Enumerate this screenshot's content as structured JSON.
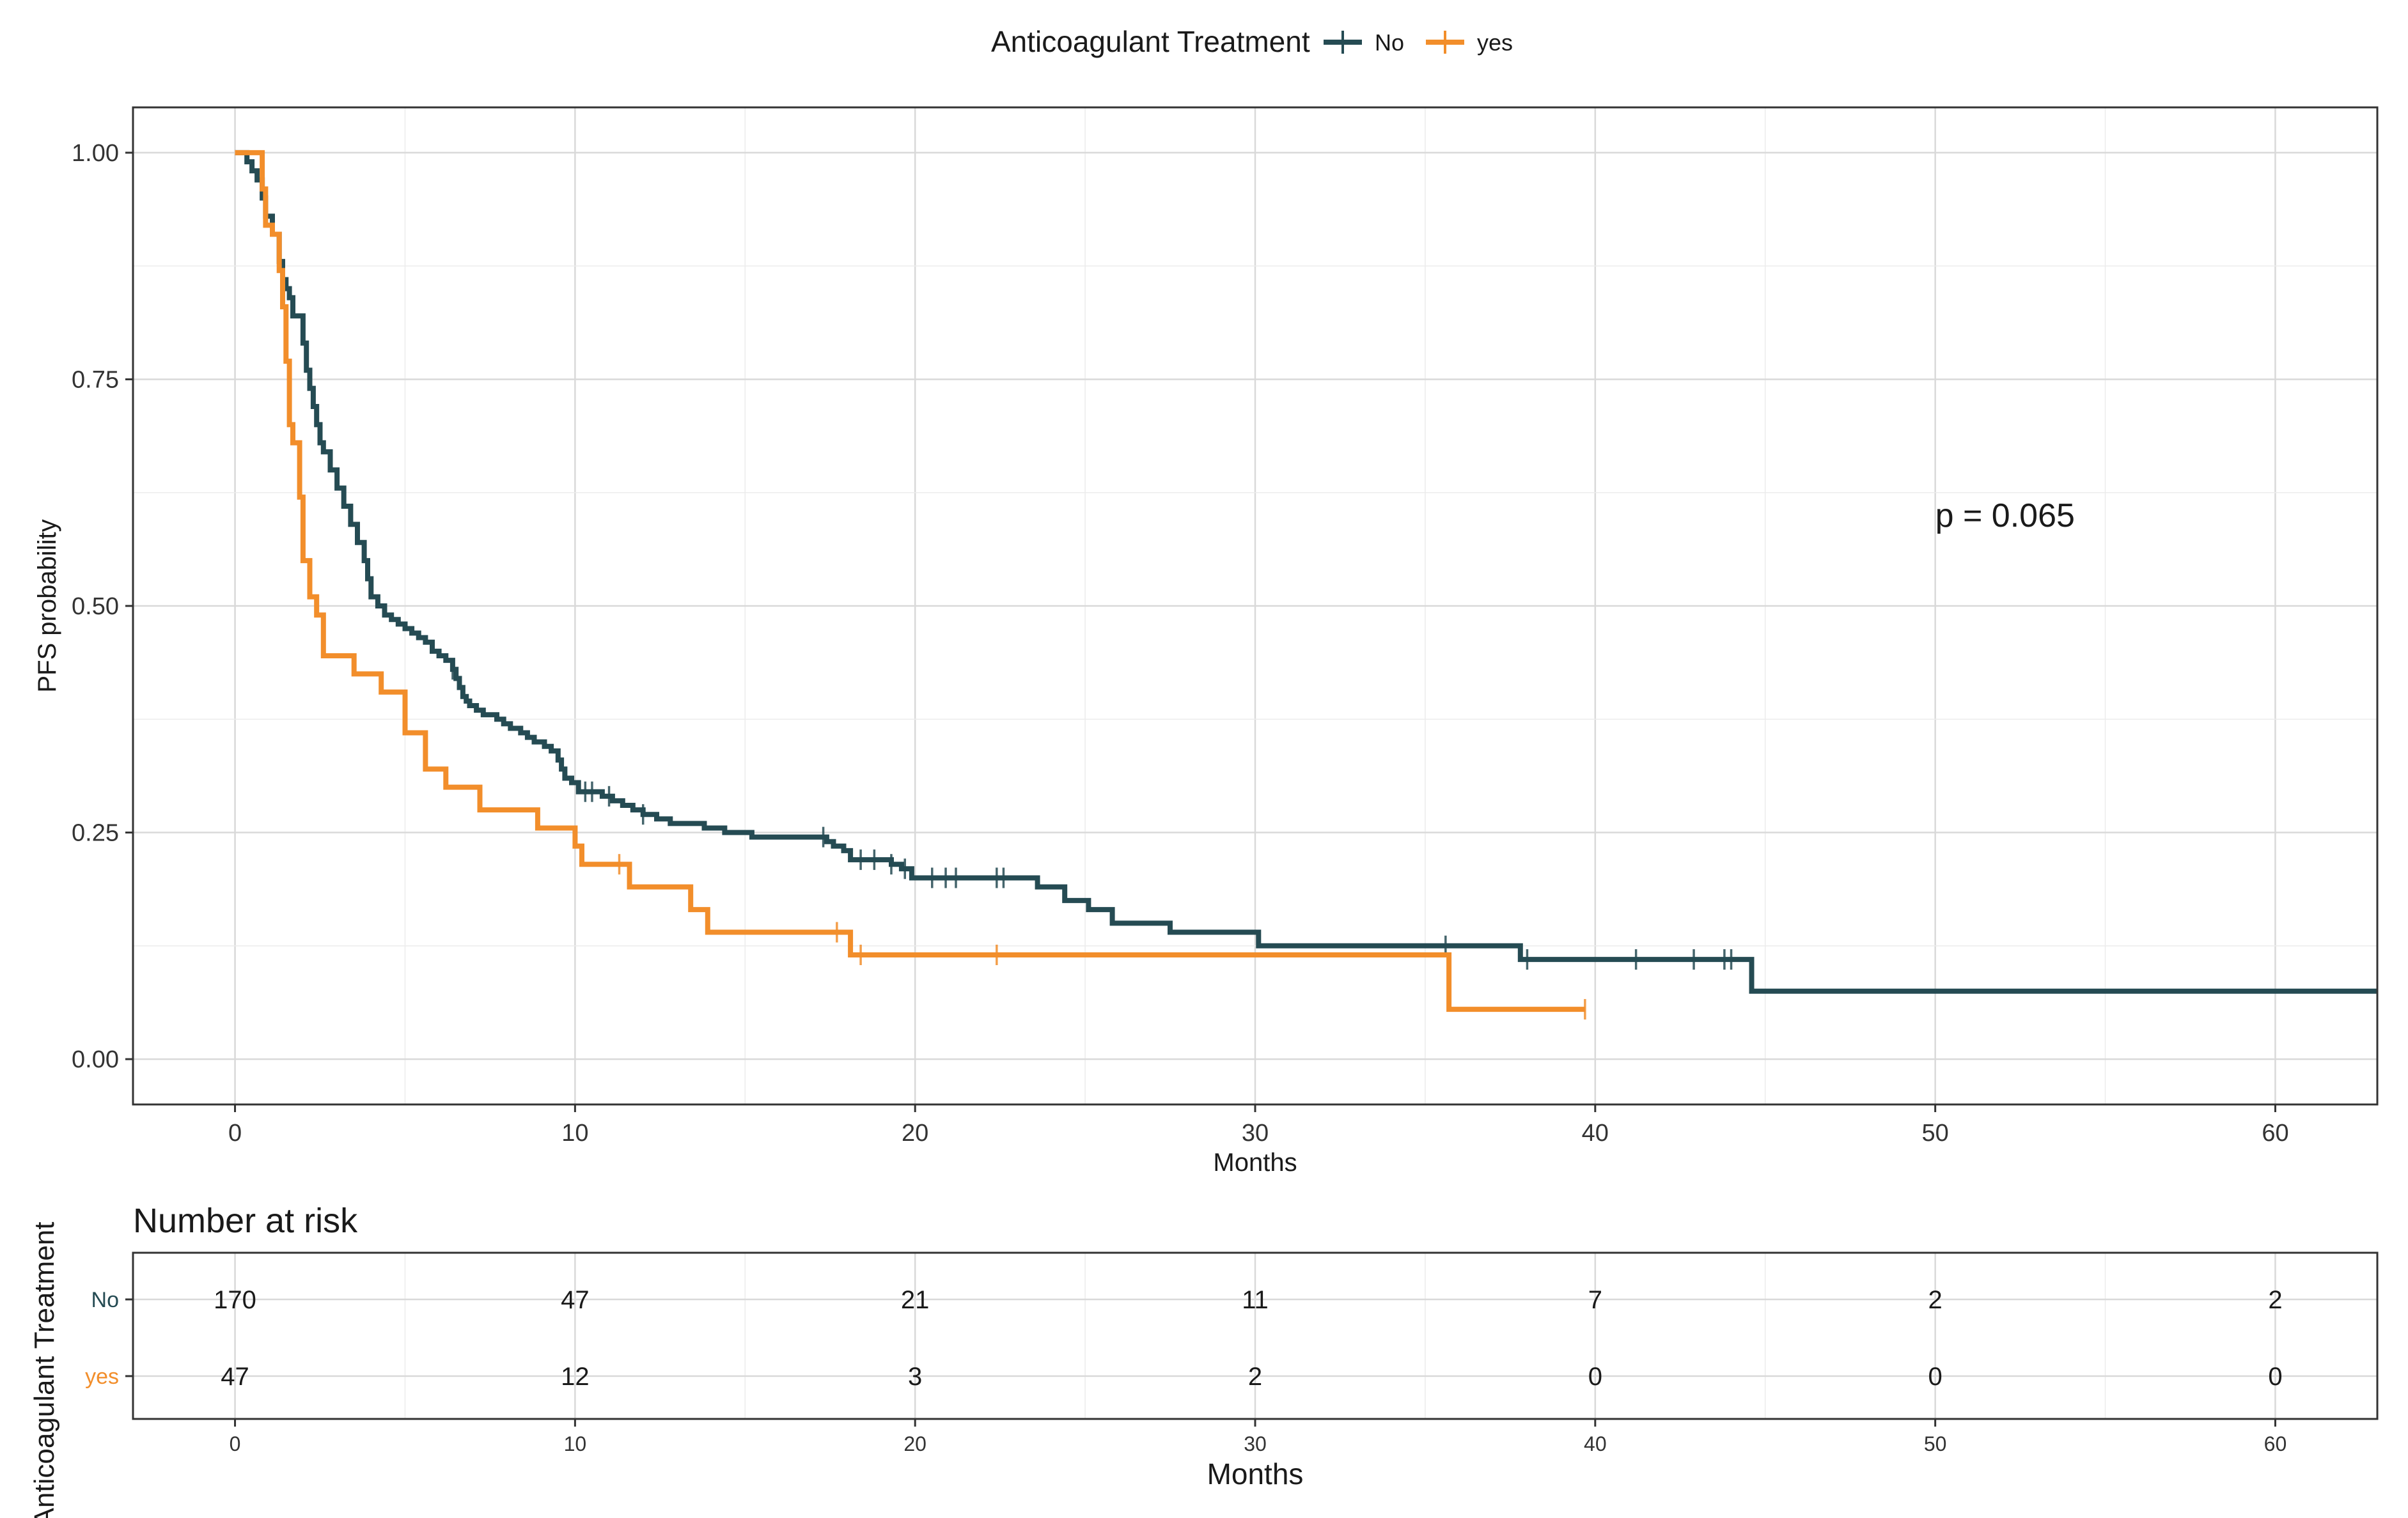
{
  "chart_data": {
    "type": "kaplan-meier",
    "legend": {
      "title": "Anticoagulant Treatment",
      "entries": [
        {
          "name": "No",
          "color": "#254b53"
        },
        {
          "name": "yes",
          "color": "#f28e2b"
        }
      ]
    },
    "xlabel": "Months",
    "ylabel": "PFS probability",
    "xlim": [
      -3,
      63
    ],
    "ylim": [
      -0.05,
      1.05
    ],
    "x_ticks": [
      "0",
      "10",
      "20",
      "30",
      "40",
      "50",
      "60"
    ],
    "x_tick_values": [
      0,
      10,
      20,
      30,
      40,
      50,
      60
    ],
    "y_ticks": [
      "0.00",
      "0.25",
      "0.50",
      "0.75",
      "1.00"
    ],
    "y_tick_values": [
      0,
      0.25,
      0.5,
      0.75,
      1.0
    ],
    "annotation": "p = 0.065",
    "annotation_x": 50,
    "annotation_y": 0.6,
    "series": [
      {
        "name": "No",
        "color": "#254b53",
        "steps": [
          [
            0,
            1.0
          ],
          [
            0.35,
            0.99
          ],
          [
            0.5,
            0.98
          ],
          [
            0.65,
            0.97
          ],
          [
            0.8,
            0.95
          ],
          [
            0.9,
            0.93
          ],
          [
            1.1,
            0.91
          ],
          [
            1.3,
            0.88
          ],
          [
            1.4,
            0.86
          ],
          [
            1.5,
            0.85
          ],
          [
            1.6,
            0.84
          ],
          [
            1.7,
            0.82
          ],
          [
            2.0,
            0.79
          ],
          [
            2.1,
            0.76
          ],
          [
            2.2,
            0.74
          ],
          [
            2.3,
            0.72
          ],
          [
            2.4,
            0.7
          ],
          [
            2.5,
            0.68
          ],
          [
            2.6,
            0.67
          ],
          [
            2.8,
            0.65
          ],
          [
            3.0,
            0.63
          ],
          [
            3.2,
            0.61
          ],
          [
            3.4,
            0.59
          ],
          [
            3.6,
            0.57
          ],
          [
            3.8,
            0.55
          ],
          [
            3.9,
            0.53
          ],
          [
            4.0,
            0.51
          ],
          [
            4.2,
            0.5
          ],
          [
            4.4,
            0.49
          ],
          [
            4.6,
            0.485
          ],
          [
            4.8,
            0.48
          ],
          [
            5.0,
            0.475
          ],
          [
            5.2,
            0.47
          ],
          [
            5.4,
            0.465
          ],
          [
            5.6,
            0.46
          ],
          [
            5.8,
            0.45
          ],
          [
            6.0,
            0.445
          ],
          [
            6.2,
            0.44
          ],
          [
            6.4,
            0.43
          ],
          [
            6.5,
            0.42
          ],
          [
            6.6,
            0.41
          ],
          [
            6.7,
            0.4
          ],
          [
            6.8,
            0.395
          ],
          [
            6.9,
            0.39
          ],
          [
            7.1,
            0.385
          ],
          [
            7.3,
            0.38
          ],
          [
            7.7,
            0.375
          ],
          [
            7.9,
            0.37
          ],
          [
            8.1,
            0.365
          ],
          [
            8.4,
            0.36
          ],
          [
            8.6,
            0.355
          ],
          [
            8.8,
            0.35
          ],
          [
            9.1,
            0.345
          ],
          [
            9.3,
            0.34
          ],
          [
            9.5,
            0.33
          ],
          [
            9.6,
            0.32
          ],
          [
            9.7,
            0.31
          ],
          [
            9.9,
            0.305
          ],
          [
            10.1,
            0.295
          ],
          [
            10.8,
            0.29
          ],
          [
            11.1,
            0.285
          ],
          [
            11.4,
            0.28
          ],
          [
            11.7,
            0.275
          ],
          [
            12.0,
            0.27
          ],
          [
            12.4,
            0.265
          ],
          [
            12.8,
            0.26
          ],
          [
            13.8,
            0.255
          ],
          [
            14.4,
            0.25
          ],
          [
            15.2,
            0.245
          ],
          [
            17.4,
            0.24
          ],
          [
            17.6,
            0.235
          ],
          [
            17.9,
            0.23
          ],
          [
            18.1,
            0.22
          ],
          [
            19.3,
            0.215
          ],
          [
            19.6,
            0.21
          ],
          [
            19.9,
            0.2
          ],
          [
            23.6,
            0.19
          ],
          [
            24.4,
            0.175
          ],
          [
            25.1,
            0.165
          ],
          [
            25.8,
            0.15
          ],
          [
            27.5,
            0.14
          ],
          [
            30.1,
            0.125
          ],
          [
            37.8,
            0.11
          ],
          [
            44.6,
            0.075
          ],
          [
            63,
            0.075
          ]
        ],
        "censor_x": [
          6.4,
          10.3,
          10.5,
          11.0,
          12.0,
          17.3,
          18.4,
          18.8,
          19.3,
          19.7,
          20.5,
          20.9,
          21.2,
          22.4,
          22.6,
          35.6,
          38.0,
          41.2,
          42.9,
          43.8,
          44.0
        ]
      },
      {
        "name": "yes",
        "color": "#f28e2b",
        "steps": [
          [
            0,
            1.0
          ],
          [
            0.8,
            0.96
          ],
          [
            0.9,
            0.92
          ],
          [
            1.1,
            0.91
          ],
          [
            1.3,
            0.87
          ],
          [
            1.4,
            0.83
          ],
          [
            1.5,
            0.77
          ],
          [
            1.6,
            0.7
          ],
          [
            1.7,
            0.68
          ],
          [
            1.9,
            0.62
          ],
          [
            2.0,
            0.55
          ],
          [
            2.2,
            0.51
          ],
          [
            2.4,
            0.49
          ],
          [
            2.6,
            0.445
          ],
          [
            3.5,
            0.425
          ],
          [
            4.3,
            0.405
          ],
          [
            5.0,
            0.36
          ],
          [
            5.6,
            0.32
          ],
          [
            6.2,
            0.3
          ],
          [
            7.2,
            0.275
          ],
          [
            8.9,
            0.255
          ],
          [
            10.0,
            0.235
          ],
          [
            10.2,
            0.215
          ],
          [
            11.6,
            0.19
          ],
          [
            13.4,
            0.165
          ],
          [
            13.9,
            0.14
          ],
          [
            18.1,
            0.115
          ],
          [
            35.7,
            0.055
          ],
          [
            39.7,
            0.055
          ]
        ],
        "censor_x": [
          11.3,
          17.7,
          18.4,
          22.4,
          39.7
        ]
      }
    ],
    "risk_table": {
      "title": "Number at risk",
      "xlabel": "Months",
      "ylabel": "Anticoagulant Treatment",
      "times": [
        "0",
        "10",
        "20",
        "30",
        "40",
        "50",
        "60"
      ],
      "rows": [
        {
          "label": "No",
          "color": "#254b53",
          "counts": [
            "170",
            "47",
            "21",
            "11",
            "7",
            "2",
            "2"
          ]
        },
        {
          "label": "yes",
          "color": "#f28e2b",
          "counts": [
            "47",
            "12",
            "3",
            "2",
            "0",
            "0",
            "0"
          ]
        }
      ]
    }
  }
}
